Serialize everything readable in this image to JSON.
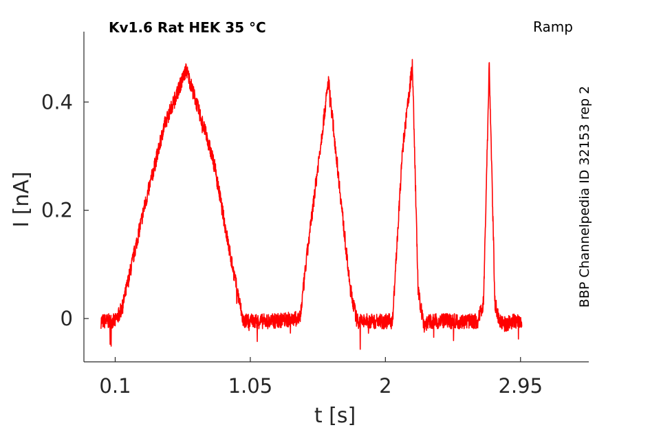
{
  "header": {
    "title": "Kv1.6  Rat  HEK  35 °C",
    "protocol": "Ramp"
  },
  "side_label": "BBP Channelpedia ID 32153 rep 2",
  "chart_data": {
    "type": "line",
    "title": "Kv1.6  Rat  HEK  35 °C",
    "xlabel": "t [s]",
    "ylabel": "I [nA]",
    "xlim": [
      -0.12,
      3.43
    ],
    "ylim": [
      -0.08,
      0.53
    ],
    "x_ticks": [
      0.1,
      1.05,
      2,
      2.95
    ],
    "x_tick_labels": [
      "0.1",
      "1.05",
      "2",
      "2.95"
    ],
    "y_ticks": [
      0,
      0.2,
      0.4
    ],
    "y_tick_labels": [
      "0",
      "0.2",
      "0.4"
    ],
    "grid": false,
    "color": "#ff0000",
    "series": [
      {
        "x": [
          0.0,
          0.1,
          0.15,
          0.3,
          0.45,
          0.6,
          0.75,
          0.8,
          0.9,
          1.0,
          1.2,
          1.4,
          1.45,
          1.6,
          1.75,
          1.8,
          2.05,
          2.12,
          2.19,
          2.23,
          2.27,
          2.33,
          2.39,
          2.6,
          2.65,
          2.69,
          2.73,
          2.77,
          2.8,
          2.83,
          2.85,
          2.89,
          2.96
        ],
        "y": [
          -0.005,
          -0.005,
          0.02,
          0.2,
          0.36,
          0.46,
          0.33,
          0.28,
          0.13,
          -0.005,
          -0.005,
          0.0,
          0.12,
          0.44,
          0.06,
          -0.005,
          -0.005,
          0.31,
          0.47,
          0.05,
          -0.01,
          -0.005,
          -0.005,
          -0.005,
          -0.005,
          0.03,
          0.47,
          0.03,
          -0.005,
          -0.01,
          -0.01,
          -0.005,
          -0.005
        ]
      }
    ]
  }
}
